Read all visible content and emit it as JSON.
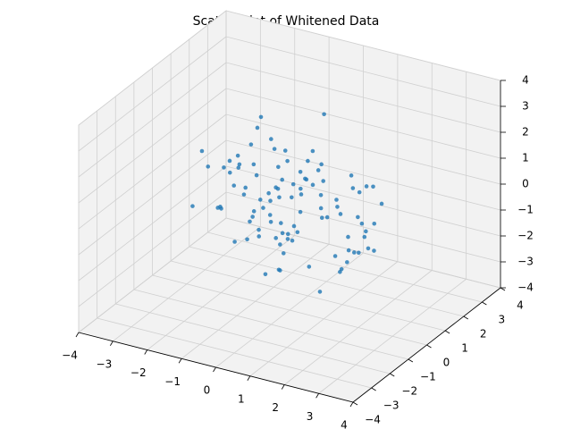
{
  "chart_data": {
    "type": "scatter3d",
    "title": "Scatter Plot of Whitened Data",
    "xlim": [
      -4,
      4
    ],
    "ylim": [
      -4,
      4
    ],
    "zlim": [
      -4,
      4
    ],
    "xticks": [
      {
        "value": -4,
        "label": "−4"
      },
      {
        "value": -3,
        "label": "−3"
      },
      {
        "value": -2,
        "label": "−2"
      },
      {
        "value": -1,
        "label": "−1"
      },
      0,
      1,
      2,
      3,
      4
    ],
    "yticks": [
      {
        "value": -4,
        "label": "−4"
      },
      {
        "value": -3,
        "label": "−3"
      },
      {
        "value": -2,
        "label": "−2"
      },
      {
        "value": -1,
        "label": "−1"
      },
      0,
      1,
      2,
      3,
      4
    ],
    "zticks": [
      {
        "value": -4,
        "label": "−4"
      },
      {
        "value": -3,
        "label": "−3"
      },
      {
        "value": -2,
        "label": "−2"
      },
      {
        "value": -1,
        "label": "−1"
      },
      0,
      1,
      2,
      3,
      4
    ],
    "grid": true,
    "series": [
      {
        "color": "#1f77b4",
        "x": [
          0.5,
          -1.2,
          0.3,
          1.8,
          -0.7,
          0.1,
          -2.1,
          1.1,
          0.9,
          -0.4,
          -1.5,
          0.6,
          2.3,
          -0.2,
          0.8,
          -1.0,
          1.4,
          -0.6,
          0.0,
          -1.8,
          0.4,
          1.7,
          -0.9,
          -0.3,
          2.0,
          -1.3,
          0.7,
          -0.1,
          1.2,
          -2.4,
          0.2,
          -0.8,
          1.5,
          -1.1,
          0.9,
          0.3,
          -0.5,
          2.6,
          -1.6,
          0.6,
          -0.2,
          1.0,
          -1.4,
          0.4,
          -2.0,
          1.3,
          0.1,
          -0.7,
          1.9,
          -1.2,
          0.8,
          -0.3,
          -1.0,
          0.5,
          2.2,
          -0.6,
          1.1,
          -1.9,
          0.0,
          0.7,
          -2.7,
          1.6,
          -0.4,
          0.3,
          -1.1,
          1.4,
          -0.9,
          0.2,
          2.4,
          -1.5,
          0.6,
          -0.1,
          1.0,
          -2.2,
          0.9,
          -0.5,
          1.3,
          -0.8,
          0.4,
          -1.7,
          1.8,
          -0.2,
          0.5,
          -1.3,
          2.1,
          -0.7,
          0.0,
          1.2,
          -1.0,
          0.3,
          -3.2,
          2.9,
          0.8,
          -0.6,
          1.5,
          -1.4,
          0.1,
          -0.3,
          1.7,
          -2.5
        ],
        "y": [
          -0.3,
          1.1,
          -1.6,
          0.4,
          0.9,
          -0.8,
          0.2,
          -1.9,
          1.5,
          0.0,
          0.7,
          -1.2,
          0.3,
          2.1,
          -0.5,
          1.3,
          -0.9,
          0.6,
          -2.3,
          0.1,
          1.8,
          -0.4,
          -1.1,
          0.8,
          0.2,
          -0.6,
          2.4,
          -1.4,
          0.5,
          0.9,
          -1.0,
          1.6,
          -0.2,
          0.3,
          -2.0,
          1.2,
          0.7,
          -0.7,
          0.0,
          -1.5,
          2.2,
          -0.3,
          0.6,
          -1.8,
          1.0,
          0.4,
          -1.2,
          1.9,
          -0.1,
          0.8,
          -0.9,
          1.4,
          0.2,
          -2.6,
          0.5,
          1.0,
          -0.4,
          0.3,
          1.7,
          -1.1,
          0.6,
          -0.5,
          2.0,
          -1.3,
          0.1,
          0.9,
          -0.8,
          1.5,
          -0.2,
          0.4,
          -1.7,
          1.1,
          -0.6,
          0.2,
          2.5,
          -1.0,
          0.7,
          -0.3,
          1.3,
          -2.1,
          0.0,
          0.8,
          -1.4,
          1.6,
          -0.7,
          0.3,
          -0.1,
          2.3,
          -1.9,
          0.5,
          1.2,
          -0.4,
          -2.8,
          0.6,
          1.0,
          -0.2,
          0.4,
          -1.6,
          0.9,
          3.1
        ],
        "z": [
          0.8,
          -0.5,
          1.2,
          -1.4,
          0.3,
          2.0,
          -0.9,
          0.1,
          -1.7,
          0.6,
          1.5,
          -0.2,
          -1.1,
          0.4,
          2.3,
          -0.7,
          0.9,
          -2.0,
          0.0,
          1.1,
          -0.6,
          0.5,
          1.8,
          -1.3,
          -0.1,
          0.7,
          -1.5,
          1.0,
          -2.4,
          0.2,
          1.3,
          -0.8,
          0.6,
          2.5,
          -0.4,
          -1.0,
          1.6,
          0.3,
          -1.9,
          0.0,
          -0.3,
          1.9,
          -1.2,
          0.8,
          0.4,
          -2.2,
          0.1,
          -0.6,
          1.4,
          -0.9,
          2.1,
          0.2,
          -1.6,
          0.7,
          -0.2,
          1.0,
          -2.7,
          0.5,
          -0.5,
          1.7,
          0.3,
          -1.1,
          0.9,
          -0.4,
          1.2,
          -1.8,
          0.6,
          2.8,
          -0.7,
          0.0,
          -1.3,
          0.4,
          1.5,
          -0.9,
          -0.3,
          0.2,
          -2.1,
          1.1,
          -1.0,
          0.6,
          1.8,
          -1.5,
          0.3,
          0.9,
          -0.6,
          2.2,
          -1.2,
          -0.1,
          0.7,
          -2.5,
          0.4,
          1.3,
          -0.8,
          -3.0,
          0.5,
          1.6,
          -0.4,
          0.2,
          -1.1,
          0.9
        ]
      }
    ]
  }
}
